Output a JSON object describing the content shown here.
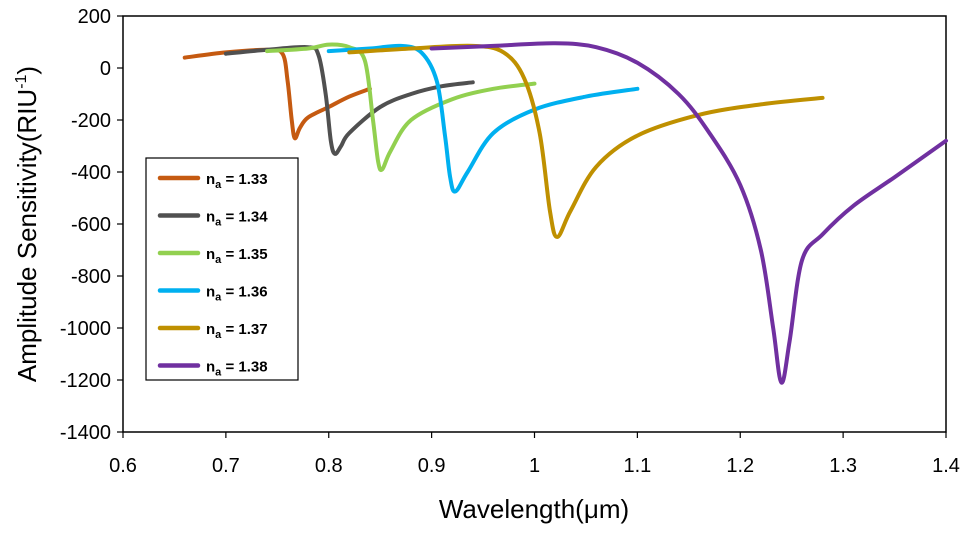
{
  "chart_data": {
    "type": "line",
    "title": "",
    "xlabel": "Wavelength(μm)",
    "ylabel": "Amplitude Sensitivity(RIU",
    "ylabel_sup": "-1",
    "ylabel_end": ")",
    "xlim": [
      0.6,
      1.4
    ],
    "ylim": [
      -1400,
      200
    ],
    "xticks": [
      "0.6",
      "0.7",
      "0.8",
      "0.9",
      "1",
      "1.1",
      "1.2",
      "1.3",
      "1.4"
    ],
    "yticks": [
      "200",
      "0",
      "-200",
      "-400",
      "-600",
      "-800",
      "-1000",
      "-1200",
      "-1400"
    ],
    "grid": false,
    "legend_position": "left",
    "series": [
      {
        "name": "n",
        "sub": "a",
        "value": " = 1.33",
        "color": "#C55A11",
        "x": [
          0.66,
          0.7,
          0.74,
          0.755,
          0.76,
          0.764,
          0.767,
          0.772,
          0.78,
          0.8,
          0.82,
          0.84
        ],
        "y": [
          40,
          60,
          70,
          55,
          -50,
          -200,
          -270,
          -230,
          -190,
          -150,
          -110,
          -80
        ]
      },
      {
        "name": "n",
        "sub": "a",
        "value": " = 1.34",
        "color": "#505050",
        "x": [
          0.7,
          0.74,
          0.78,
          0.79,
          0.797,
          0.802,
          0.806,
          0.812,
          0.82,
          0.85,
          0.88,
          0.91,
          0.94
        ],
        "y": [
          55,
          70,
          80,
          50,
          -100,
          -280,
          -330,
          -300,
          -250,
          -150,
          -100,
          -70,
          -55
        ]
      },
      {
        "name": "n",
        "sub": "a",
        "value": " = 1.35",
        "color": "#92D050",
        "x": [
          0.74,
          0.78,
          0.8,
          0.82,
          0.835,
          0.843,
          0.848,
          0.852,
          0.86,
          0.88,
          0.92,
          0.96,
          1.0
        ],
        "y": [
          65,
          75,
          90,
          80,
          30,
          -200,
          -360,
          -390,
          -320,
          -200,
          -120,
          -80,
          -60
        ]
      },
      {
        "name": "n",
        "sub": "a",
        "value": " = 1.36",
        "color": "#00B0F0",
        "x": [
          0.8,
          0.84,
          0.87,
          0.89,
          0.905,
          0.913,
          0.918,
          0.923,
          0.935,
          0.96,
          1.0,
          1.05,
          1.1
        ],
        "y": [
          65,
          75,
          85,
          60,
          -50,
          -260,
          -420,
          -475,
          -400,
          -250,
          -160,
          -110,
          -80
        ]
      },
      {
        "name": "n",
        "sub": "a",
        "value": " = 1.37",
        "color": "#BF9000",
        "x": [
          0.82,
          0.88,
          0.94,
          0.97,
          0.99,
          1.005,
          1.015,
          1.022,
          1.035,
          1.06,
          1.1,
          1.16,
          1.22,
          1.28
        ],
        "y": [
          60,
          75,
          85,
          60,
          -40,
          -250,
          -550,
          -650,
          -550,
          -380,
          -260,
          -180,
          -140,
          -115
        ]
      },
      {
        "name": "n",
        "sub": "a",
        "value": " = 1.38",
        "color": "#7030A0",
        "x": [
          0.9,
          0.96,
          1.02,
          1.06,
          1.1,
          1.14,
          1.17,
          1.2,
          1.22,
          1.232,
          1.24,
          1.248,
          1.26,
          1.28,
          1.31,
          1.35,
          1.4
        ],
        "y": [
          75,
          85,
          95,
          80,
          20,
          -100,
          -250,
          -450,
          -700,
          -1000,
          -1210,
          -1050,
          -740,
          -640,
          -530,
          -420,
          -280
        ]
      }
    ]
  }
}
